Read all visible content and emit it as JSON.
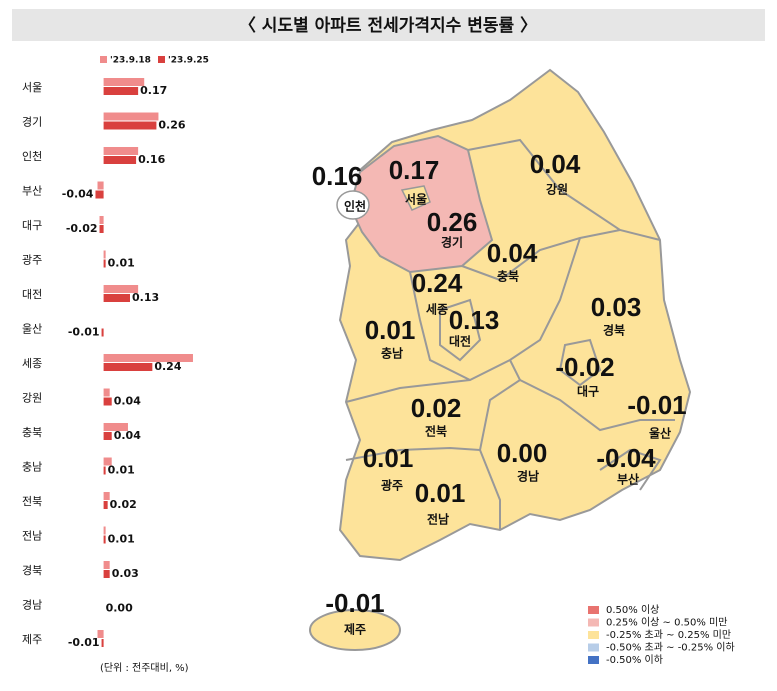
{
  "title": "〈 시도별 아파트 전세가격지수 변동률 〉",
  "chart_data": {
    "type": "hbar",
    "categories": [
      "서울",
      "경기",
      "인천",
      "부산",
      "대구",
      "광주",
      "대전",
      "울산",
      "세종",
      "강원",
      "충북",
      "충남",
      "전북",
      "전남",
      "경북",
      "경남",
      "제주"
    ],
    "series": [
      {
        "name": "'23.9.18",
        "color": "#f08c8c",
        "values": [
          0.2,
          0.27,
          0.17,
          -0.03,
          -0.02,
          0.01,
          0.17,
          0.0,
          0.44,
          0.03,
          0.12,
          0.04,
          0.03,
          0.01,
          0.03,
          0.0,
          -0.03
        ]
      },
      {
        "name": "'23.9.25",
        "color": "#d9403e",
        "values": [
          0.17,
          0.26,
          0.16,
          -0.04,
          -0.02,
          0.01,
          0.13,
          -0.01,
          0.24,
          0.04,
          0.04,
          0.01,
          0.02,
          0.01,
          0.03,
          0.0,
          -0.01
        ],
        "value_labels": [
          "0.17",
          "0.26",
          "0.16",
          "-0.04",
          "-0.02",
          "0.01",
          "0.13",
          "-0.01",
          "0.24",
          "0.04",
          "0.04",
          "0.01",
          "0.02",
          "0.01",
          "0.03",
          "0.00",
          "-0.01"
        ]
      }
    ],
    "xlim": [
      -0.19,
      0.45
    ],
    "note": "(단위 : 전주대비, %)"
  },
  "map_legend": [
    {
      "label": "0.50% 이상",
      "color": "#e8736f"
    },
    {
      "label": "0.25% 이상 ~ 0.50% 미만",
      "color": "#f4b8b4"
    },
    {
      "label": "-0.25% 초과 ~ 0.25% 미만",
      "color": "#fde39a"
    },
    {
      "label": "-0.50% 초과 ~ -0.25% 이하",
      "color": "#b7cde8"
    },
    {
      "label": "-0.50% 이하",
      "color": "#4472c4"
    }
  ]
}
